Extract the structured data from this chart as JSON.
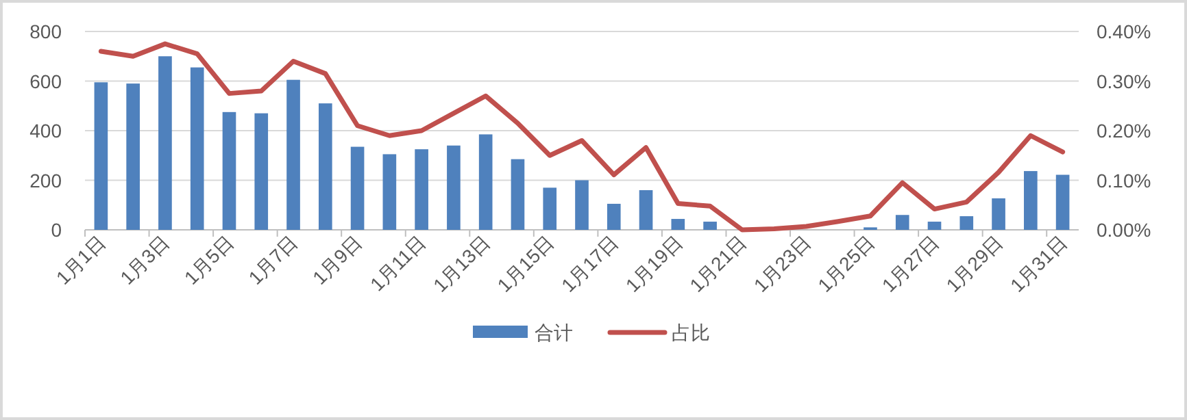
{
  "chart_data": {
    "type": "bar",
    "categories": [
      "1月1日",
      null,
      "1月3日",
      null,
      "1月5日",
      null,
      "1月7日",
      null,
      "1月9日",
      null,
      "1月11日",
      null,
      "1月13日",
      null,
      "1月15日",
      null,
      "1月17日",
      null,
      "1月19日",
      null,
      "1月21日",
      null,
      "1月23日",
      null,
      "1月25日",
      null,
      "1月27日",
      null,
      "1月29日",
      null,
      "1月31日"
    ],
    "series": [
      {
        "name": "合计",
        "color": "#4f81bd",
        "values": [
          595,
          590,
          700,
          655,
          475,
          470,
          605,
          510,
          335,
          305,
          325,
          340,
          385,
          285,
          170,
          200,
          105,
          160,
          44,
          33,
          0,
          0,
          0,
          0,
          10,
          60,
          33,
          55,
          127,
          237,
          222
        ]
      },
      {
        "name": "占比",
        "type": "line",
        "axis": "y2",
        "color": "#c0504d",
        "values": [
          0.36,
          0.35,
          0.375,
          0.355,
          0.275,
          0.28,
          0.34,
          0.315,
          0.21,
          0.19,
          0.2,
          0.235,
          0.27,
          0.215,
          0.15,
          0.18,
          0.111,
          0.166,
          0.053,
          0.048,
          0,
          0.002,
          0.007,
          0.017,
          0.028,
          0.095,
          0.042,
          0.056,
          0.116,
          0.19,
          0.157
        ]
      }
    ],
    "ylim": [
      0,
      800
    ],
    "yticks": [
      0,
      200,
      400,
      600,
      800
    ],
    "y2lim": [
      0,
      0.4
    ],
    "y2ticks": [
      {
        "value": 0,
        "label": "0.00%"
      },
      {
        "value": 0.1,
        "label": "0.10%"
      },
      {
        "value": 0.2,
        "label": "0.20%"
      },
      {
        "value": 0.3,
        "label": "0.30%"
      },
      {
        "value": 0.4,
        "label": "0.40%"
      }
    ],
    "grid": "y",
    "legend": "bottom",
    "line_style": "solid",
    "marker": "none"
  }
}
